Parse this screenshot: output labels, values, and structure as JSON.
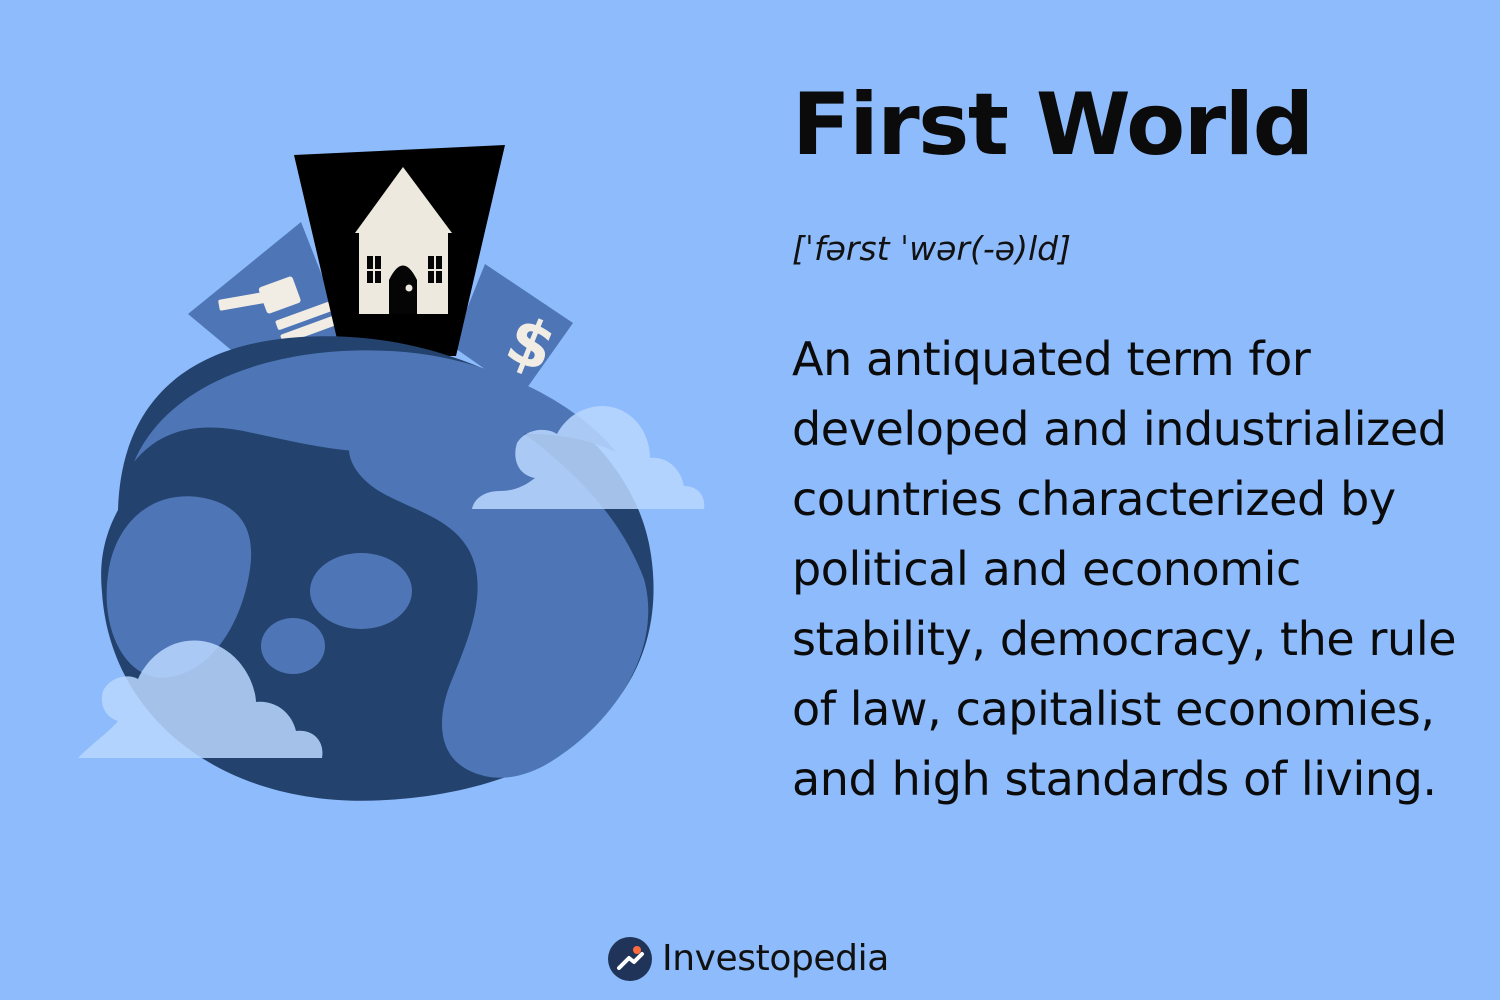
{
  "title": "First World",
  "pronunciation": "[ˈfərst ˈwər(-ə)ld]",
  "definition": "An antiquated term for developed and industrialized countries characterized by political and economic stability, democracy, the rule of law, capitalist economies, and high standards of living.",
  "brand": "Investopedia",
  "colors": {
    "background": "#8dbbfb",
    "globe_dark": "#23426d",
    "globe_mid": "#4e76b6",
    "cloud": "#b9d6ff",
    "house_panel": "#000000",
    "house_fill": "#eee9de",
    "brand_mark": "#1f3458"
  },
  "icons": [
    "globe-illustration",
    "house-icon",
    "gavel-icon",
    "dollar-icon",
    "cloud-icon",
    "investopedia-logo-icon"
  ]
}
